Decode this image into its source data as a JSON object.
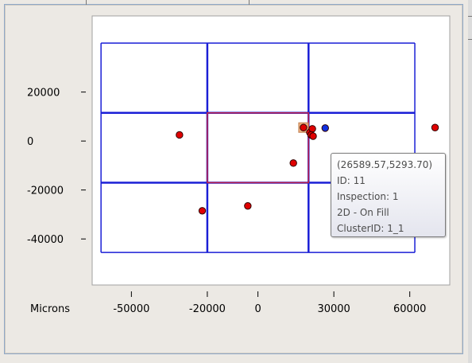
{
  "chart_data": {
    "type": "scatter",
    "unit_label": "Microns",
    "x_ticks": [
      -50000,
      -20000,
      0,
      30000,
      60000
    ],
    "x_tick_labels": [
      "-50000",
      "-20000",
      "0",
      "30000",
      "60000"
    ],
    "y_ticks": [
      20000,
      0,
      -20000,
      -40000
    ],
    "y_tick_labels": [
      "20000",
      "0",
      "-20000",
      "-40000"
    ],
    "xlim": [
      -65500,
      75800
    ],
    "ylim": [
      -58800,
      51100
    ],
    "grid_x": [
      -62000,
      -20000,
      20000,
      62000
    ],
    "grid_y": [
      40000,
      11500,
      -17000,
      -45500
    ],
    "grid_color": "#1a1fd6",
    "highlight_cell": {
      "x": [
        -20000,
        20000
      ],
      "y": [
        -17000,
        11500
      ],
      "color": "#c0224a"
    },
    "series": [
      {
        "color": "#e00000",
        "points": [
          {
            "x": -31000,
            "y": 2500
          },
          {
            "x": -22000,
            "y": -28500
          },
          {
            "x": -4000,
            "y": -26500
          },
          {
            "x": 14000,
            "y": -9000
          },
          {
            "x": 18000,
            "y": 5500
          },
          {
            "x": 20500,
            "y": 3500
          },
          {
            "x": 21500,
            "y": 5000
          },
          {
            "x": 21000,
            "y": 2500
          },
          {
            "x": 21800,
            "y": 2000
          },
          {
            "x": 70000,
            "y": 5500
          }
        ]
      },
      {
        "color": "#1030e0",
        "points": [
          {
            "x": 26589.57,
            "y": 5293.7
          }
        ]
      }
    ],
    "selected_marker_color": "#f0b080"
  },
  "tooltip": {
    "coords": "(26589.57,5293.70)",
    "id": "ID: 11",
    "inspection": "Inspection: 1",
    "type": "2D - On Fill",
    "cluster": "ClusterID: 1_1"
  }
}
